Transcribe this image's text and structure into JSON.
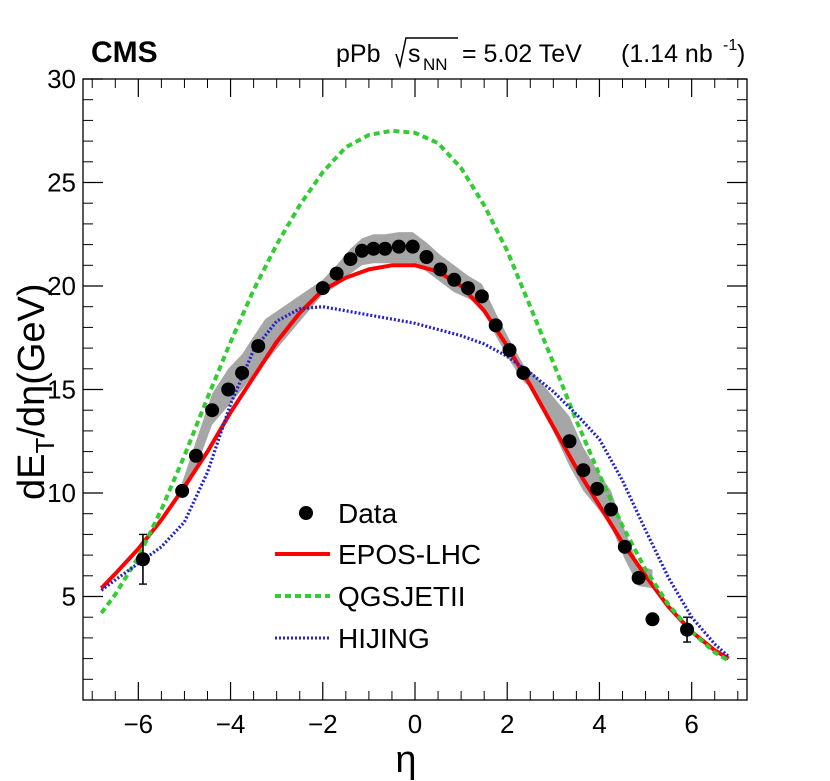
{
  "header": {
    "experiment": "CMS",
    "system": "pPb",
    "sqrt_s": "s",
    "sqrt_s_sub": "NN",
    "energy": "= 5.02 TeV",
    "lumi": "(1.14 nb",
    "lumi_exp": "-1",
    "lumi_close": ")"
  },
  "chart_data": {
    "type": "scatter",
    "title": "",
    "xlabel": "η",
    "ylabel_main": "dE",
    "ylabel_sub": "T",
    "ylabel_rest": "/dη(GeV)",
    "xlim": [
      -7.2,
      7.2
    ],
    "ylim": [
      0,
      30
    ],
    "xticks": [
      -6,
      -4,
      -2,
      0,
      2,
      4,
      6
    ],
    "xtick_labels": [
      "−6",
      "−4",
      "−2",
      "0",
      "2",
      "4",
      "6"
    ],
    "yticks": [
      5,
      10,
      15,
      20,
      25,
      30
    ],
    "ytick_labels": [
      "5",
      "10",
      "15",
      "20",
      "25",
      "30"
    ],
    "data": {
      "name": "Data",
      "x": [
        -5.9,
        -5.05,
        -4.75,
        -4.4,
        -4.05,
        -3.75,
        -3.4,
        -2.0,
        -1.7,
        -1.4,
        -1.15,
        -0.9,
        -0.65,
        -0.35,
        -0.05,
        0.25,
        0.55,
        0.85,
        1.15,
        1.45,
        1.75,
        2.05,
        2.35,
        3.35,
        3.65,
        3.95,
        4.25,
        4.55,
        4.85,
        5.15,
        5.9
      ],
      "y": [
        6.8,
        10.1,
        11.8,
        14.0,
        15.0,
        15.8,
        17.1,
        19.9,
        20.6,
        21.3,
        21.7,
        21.8,
        21.8,
        21.9,
        21.9,
        21.4,
        20.8,
        20.3,
        19.9,
        19.5,
        18.1,
        16.9,
        15.8,
        12.5,
        11.1,
        10.2,
        9.2,
        7.4,
        5.9,
        3.9,
        3.4
      ],
      "yerr": [
        1.2,
        0.25,
        0.25,
        0.25,
        0.25,
        0.25,
        0.25,
        0.25,
        0.25,
        0.25,
        0.25,
        0.25,
        0.25,
        0.25,
        0.25,
        0.25,
        0.25,
        0.25,
        0.25,
        0.25,
        0.25,
        0.25,
        0.25,
        0.25,
        0.25,
        0.25,
        0.25,
        0.25,
        0.25,
        0.25,
        0.6
      ],
      "band_x": [
        -5.05,
        -4.75,
        -4.4,
        -4.05,
        -3.75,
        -3.4,
        -3.25,
        -2.0,
        -1.7,
        -1.4,
        -1.15,
        -0.9,
        -0.65,
        -0.35,
        -0.05,
        0.25,
        0.55,
        0.85,
        1.15,
        1.45,
        1.75,
        2.05,
        2.35,
        2.6,
        3.35,
        3.65,
        3.95,
        4.25,
        4.55,
        4.85,
        5.15
      ],
      "band_lo": [
        9.7,
        11.2,
        13.3,
        14.2,
        15.0,
        16.0,
        16.3,
        19.6,
        20.0,
        20.6,
        21.0,
        21.1,
        21.1,
        21.1,
        21.1,
        20.7,
        20.2,
        19.7,
        19.4,
        19.0,
        17.6,
        16.4,
        15.4,
        14.9,
        11.3,
        10.1,
        9.3,
        8.4,
        6.8,
        5.5,
        5.4
      ],
      "band_hi": [
        10.5,
        12.5,
        14.8,
        16.0,
        16.7,
        17.9,
        18.4,
        20.3,
        21.0,
        21.8,
        22.3,
        22.5,
        22.5,
        22.6,
        22.6,
        22.1,
        21.5,
        21.0,
        20.5,
        20.1,
        18.7,
        17.4,
        16.2,
        15.7,
        13.7,
        12.2,
        11.1,
        10.1,
        8.2,
        6.5,
        6.3
      ]
    },
    "series": [
      {
        "name": "EPOS-LHC",
        "color": "#ff0000",
        "style": "solid",
        "x": [
          -6.8,
          -6.5,
          -6.0,
          -5.5,
          -5.0,
          -4.5,
          -4.0,
          -3.5,
          -3.0,
          -2.5,
          -2.0,
          -1.5,
          -1.0,
          -0.5,
          0.0,
          0.5,
          1.0,
          1.5,
          2.0,
          2.5,
          3.0,
          3.5,
          4.0,
          4.5,
          5.0,
          5.5,
          6.0,
          6.5,
          6.8
        ],
        "y": [
          5.4,
          6.1,
          7.3,
          8.7,
          10.3,
          12.0,
          13.9,
          15.6,
          17.3,
          18.7,
          19.8,
          20.4,
          20.8,
          21.0,
          21.0,
          20.7,
          20.0,
          18.8,
          17.1,
          15.2,
          13.2,
          11.2,
          9.4,
          7.6,
          6.0,
          4.5,
          3.3,
          2.4,
          2.0
        ]
      },
      {
        "name": "QGSJETII",
        "color": "#33cc33",
        "style": "dashed",
        "x": [
          -6.8,
          -6.5,
          -6.0,
          -5.5,
          -5.0,
          -4.5,
          -4.0,
          -3.5,
          -3.0,
          -2.5,
          -2.0,
          -1.5,
          -1.0,
          -0.5,
          0.0,
          0.5,
          1.0,
          1.5,
          2.0,
          2.5,
          3.0,
          3.5,
          4.0,
          4.5,
          5.0,
          5.5,
          6.0,
          6.5,
          6.8
        ],
        "y": [
          4.2,
          5.1,
          6.9,
          9.2,
          11.8,
          14.6,
          17.3,
          19.8,
          22.0,
          23.9,
          25.5,
          26.7,
          27.3,
          27.5,
          27.4,
          26.9,
          25.7,
          23.9,
          21.7,
          19.0,
          16.3,
          13.5,
          10.9,
          8.4,
          6.3,
          4.6,
          3.3,
          2.3,
          1.9
        ]
      },
      {
        "name": "HIJING",
        "color": "#2222cc",
        "style": "dotted",
        "x": [
          -6.8,
          -6.5,
          -6.0,
          -5.5,
          -5.0,
          -4.5,
          -4.0,
          -3.5,
          -3.0,
          -2.5,
          -2.0,
          -1.5,
          -1.0,
          -0.5,
          0.0,
          0.5,
          1.0,
          1.5,
          2.0,
          2.5,
          3.0,
          3.5,
          4.0,
          4.5,
          5.0,
          5.5,
          6.0,
          6.5,
          6.8
        ],
        "y": [
          5.3,
          5.8,
          6.6,
          7.4,
          8.6,
          11.0,
          14.3,
          16.9,
          18.3,
          18.9,
          19.0,
          18.8,
          18.6,
          18.4,
          18.2,
          17.9,
          17.6,
          17.2,
          16.6,
          15.8,
          14.9,
          13.8,
          12.6,
          10.6,
          8.2,
          5.9,
          4.0,
          2.7,
          2.1
        ]
      }
    ],
    "legend": [
      "Data",
      "EPOS-LHC",
      "QGSJETII",
      "HIJING"
    ],
    "legend_position": "bottom-center"
  }
}
